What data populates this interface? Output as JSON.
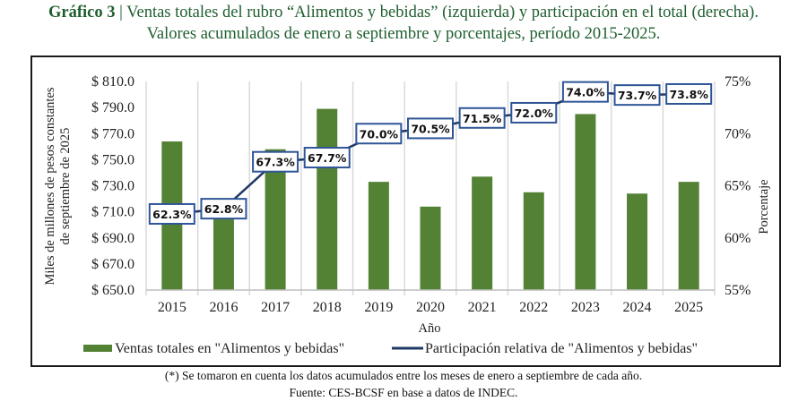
{
  "title": {
    "prefix": "Gráfico 3",
    "separator": "|",
    "line1": "Ventas totales del rubro “Alimentos y bebidas” (izquierda) y participación en el total (derecha).",
    "line2": "Valores acumulados de enero a septiembre y porcentajes, período 2015-2025."
  },
  "colors": {
    "title": "#1e5e2e",
    "bars": "#548235",
    "line": "#1f3864",
    "label_border": "#2f5597",
    "gridline": "#d9d9d9"
  },
  "chart_data": {
    "type": "bar",
    "combo": "bar+line (dual axis)",
    "categories": [
      "2015",
      "2016",
      "2017",
      "2018",
      "2019",
      "2020",
      "2021",
      "2022",
      "2023",
      "2024",
      "2025"
    ],
    "xlabel": "Año",
    "ylabel": "Miles de millones de pesos constantes de septiembre de 2025",
    "ylabel_lines": [
      "Miles de millones de pesos constantes",
      "de septiembre de 2025"
    ],
    "y2label": "Porcentaje",
    "ylim": [
      650,
      810
    ],
    "yticks": [
      650,
      670,
      690,
      710,
      730,
      750,
      770,
      790,
      810
    ],
    "ytick_labels": [
      "$ 650.0",
      "$ 670.0",
      "$ 690.0",
      "$ 710.0",
      "$ 730.0",
      "$ 750.0",
      "$ 770.0",
      "$ 790.0",
      "$ 810.0"
    ],
    "y2lim": [
      55,
      75
    ],
    "y2ticks": [
      55,
      60,
      65,
      70,
      75
    ],
    "y2tick_labels": [
      "55%",
      "60%",
      "65%",
      "70%",
      "75%"
    ],
    "grid": "vertical category gridlines",
    "legend_position": "bottom",
    "series": [
      {
        "name": "Ventas totales en \"Alimentos y bebidas\"",
        "type": "bar",
        "axis": "left",
        "values": [
          764,
          705,
          758,
          789,
          733,
          714,
          737,
          725,
          785,
          724,
          733
        ]
      },
      {
        "name": "Participación relativa de \"Alimentos y bebidas\"",
        "type": "line",
        "axis": "right",
        "values": [
          62.3,
          62.8,
          67.3,
          67.7,
          70.0,
          70.5,
          71.5,
          72.0,
          74.0,
          73.7,
          73.8
        ],
        "data_labels": [
          "62.3%",
          "62.8%",
          "67.3%",
          "67.7%",
          "70.0%",
          "70.5%",
          "71.5%",
          "72.0%",
          "74.0%",
          "73.7%",
          "73.8%"
        ]
      }
    ]
  },
  "footnotes": {
    "note": "(*) Se tomaron en cuenta los datos acumulados entre los meses de enero a septiembre de cada año.",
    "source": "Fuente: CES-BCSF en base a datos de INDEC."
  }
}
